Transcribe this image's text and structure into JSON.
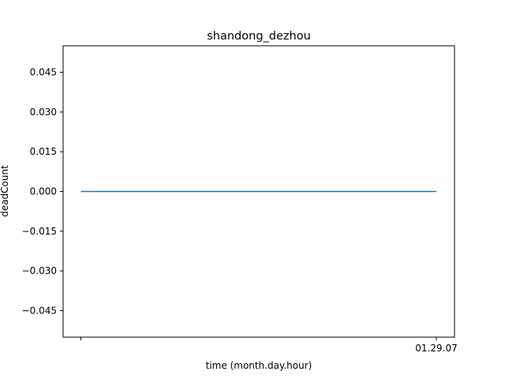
{
  "chart_data": {
    "type": "line",
    "title": "shandong_dezhou",
    "xlabel": "time (month.day.hour)",
    "ylabel": "deadCount",
    "x_tick_labels": [
      "",
      "01.29.07"
    ],
    "y_ticks": [
      -0.045,
      -0.03,
      -0.015,
      0.0,
      0.015,
      0.03,
      0.045
    ],
    "y_tick_labels": [
      "−0.045",
      "−0.030",
      "−0.015",
      "0.000",
      "0.015",
      "0.030",
      "0.045"
    ],
    "ylim": [
      -0.055,
      0.055
    ],
    "grid": false,
    "series": [
      {
        "x": [
          "",
          "01.29.07"
        ],
        "values": [
          0,
          0
        ],
        "color": "#1f77b4"
      }
    ]
  }
}
